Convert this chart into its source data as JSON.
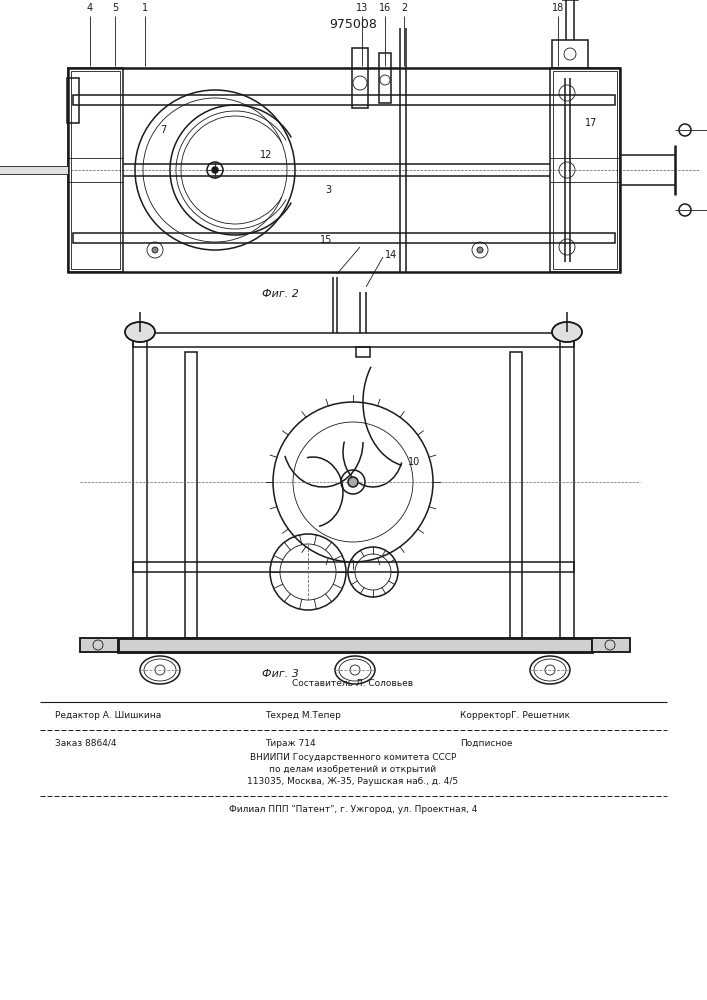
{
  "patent_number": "975008",
  "background_color": "#ffffff",
  "line_color": "#1a1a1a",
  "fig_width": 7.07,
  "fig_height": 10.0,
  "dpi": 100,
  "fig2_label": "Фиг. 2",
  "fig3_label": "Фиг. 3",
  "footer_sestavitel": "Составитель Л. Соловьев",
  "footer_redaktor": "Редактор А. Шишкина",
  "footer_tehred": "Техред М.Тепер",
  "footer_korrektor": "КорректорГ. Решетник",
  "footer_zakaz": "Заказ 8864/4",
  "footer_tirazh": "Тираж 714",
  "footer_podpisnoe": "Подписное",
  "footer_vniipи": "ВНИИПИ Государственного комитета СССР",
  "footer_podel": "по делам изобретений и открытий",
  "footer_addr": "113035, Москва, Ж-35, Раушская наб., д. 4/5",
  "footer_filial": "Филиал ППП \"Патент\", г. Ужгород, ул. Проектная, 4"
}
